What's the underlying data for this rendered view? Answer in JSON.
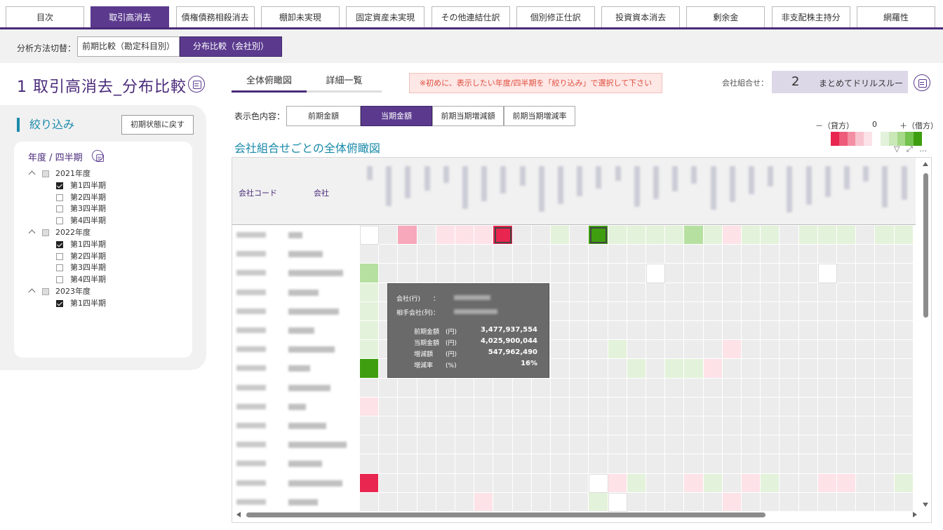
{
  "top_tabs": [
    {
      "label": "目次",
      "active": false
    },
    {
      "label": "取引高消去",
      "active": true
    },
    {
      "label": "債権債務相殺消去",
      "active": false
    },
    {
      "label": "棚卸未実現",
      "active": false
    },
    {
      "label": "固定資産未実現",
      "active": false
    },
    {
      "label": "その他連結仕訳",
      "active": false
    },
    {
      "label": "個別修正仕訳",
      "active": false
    },
    {
      "label": "投資資本消去",
      "active": false
    },
    {
      "label": "剰余金",
      "active": false
    },
    {
      "label": "非支配株主持分",
      "active": false
    },
    {
      "label": "網羅性",
      "active": false
    }
  ],
  "mode_bar": {
    "label": "分析方法切替：",
    "options": [
      {
        "label": "前期比較（勘定科目別）",
        "active": false
      },
      {
        "label": "分布比較（会社別）",
        "active": true
      }
    ]
  },
  "page_title": "1  取引高消去_分布比較",
  "filter_panel": {
    "title": "絞り込み",
    "reset_label": "初期状態に戻す",
    "section_label": "年度 / 四半期",
    "years": [
      {
        "label": "2021年度",
        "quarters": [
          {
            "label": "第1四半期",
            "checked": true
          },
          {
            "label": "第2四半期",
            "checked": false
          },
          {
            "label": "第3四半期",
            "checked": false
          },
          {
            "label": "第4四半期",
            "checked": false
          }
        ]
      },
      {
        "label": "2022年度",
        "quarters": [
          {
            "label": "第1四半期",
            "checked": true
          },
          {
            "label": "第2四半期",
            "checked": false
          },
          {
            "label": "第3四半期",
            "checked": false
          },
          {
            "label": "第4四半期",
            "checked": false
          }
        ]
      },
      {
        "label": "2023年度",
        "quarters": [
          {
            "label": "第1四半期",
            "checked": true
          }
        ]
      }
    ]
  },
  "view_tabs": [
    {
      "label": "全体俯瞰図",
      "active": true
    },
    {
      "label": "詳細一覧",
      "active": false
    }
  ],
  "notice": "※初めに、表示したい年度/四半期を「絞り込み」で選択して下さい",
  "combo": {
    "label": "会社組合せ：",
    "count": "2",
    "drill_label": "まとめてドリルスルー"
  },
  "display": {
    "label": "表示色内容：",
    "options": [
      {
        "label": "前期金額",
        "active": false
      },
      {
        "label": "当期金額",
        "active": true
      },
      {
        "label": "前期当期増減額",
        "active": false
      },
      {
        "label": "前期当期増減率",
        "active": false
      }
    ]
  },
  "legend": {
    "minus": "－（貸方）",
    "zero": "0",
    "plus": "＋（借方）",
    "colors": [
      "#e8264f",
      "#ee5a7a",
      "#f38ea3",
      "#f8c4cf",
      "#fbe2e8",
      "#ffffff",
      "#e3f2da",
      "#c9e7b7",
      "#a6d98a",
      "#74c24f",
      "#3e9e10"
    ]
  },
  "section_title": "会社組合せごとの全体俯瞰図",
  "grid_headers": {
    "code": "会社コード",
    "company": "会社"
  },
  "heatmap_colors": {
    "empty": "#ececec",
    "light_pink": "#fde2e8",
    "pink": "#f7a9bb",
    "red": "#e8264f",
    "light_green": "#e3f2da",
    "green": "#b6e0a0",
    "dark_green": "#3e9e10",
    "white": "#ffffff"
  },
  "tooltip": {
    "row_label": "会社(行)　　：",
    "col_label": "相手会社(列)：",
    "metrics": [
      {
        "label": "前期金額　(円)",
        "value": "3,477,937,554"
      },
      {
        "label": "当期金額　(円)",
        "value": "4,025,900,044"
      },
      {
        "label": "増減額　　(円)",
        "value": "547,962,490"
      },
      {
        "label": "増減率　　(%)",
        "value": "16%"
      }
    ]
  }
}
